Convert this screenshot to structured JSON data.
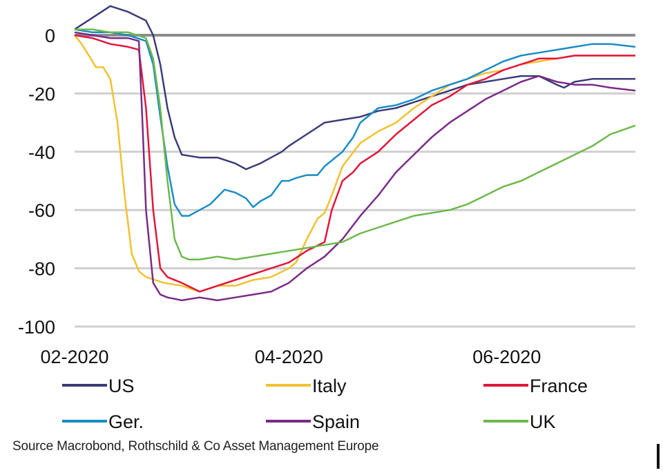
{
  "chart_data": {
    "type": "line",
    "title": "",
    "xlabel": "",
    "ylabel": "",
    "ylim": [
      -100,
      0
    ],
    "yticks": [
      0,
      -20,
      -40,
      -60,
      -80,
      -100
    ],
    "ytick_labels": [
      "0",
      "-20",
      "-40",
      "-60",
      "-80",
      "-100"
    ],
    "xticks": [
      {
        "label": "02-2020",
        "day": 0
      },
      {
        "label": "04-2020",
        "day": 60
      },
      {
        "label": "06-2020",
        "day": 121
      }
    ],
    "x_unit": "days since 2020-02-01",
    "xlim": [
      0,
      157
    ],
    "grid": true,
    "zero_line": true,
    "legend_position": "bottom",
    "series": [
      {
        "name": "US",
        "color": "#3b3b78",
        "x": [
          0,
          5,
          10,
          15,
          20,
          22,
          24,
          26,
          28,
          30,
          35,
          40,
          45,
          48,
          50,
          52,
          55,
          58,
          60,
          65,
          70,
          75,
          80,
          85,
          90,
          95,
          100,
          105,
          110,
          115,
          120,
          125,
          130,
          135,
          137,
          140,
          145,
          150,
          157
        ],
        "y": [
          2,
          6,
          10,
          8,
          5,
          0,
          -10,
          -25,
          -35,
          -41,
          -42,
          -42,
          -44,
          -46,
          -45,
          -44,
          -42,
          -40,
          -38,
          -34,
          -30,
          -29,
          -28,
          -26,
          -25,
          -23,
          -21,
          -19,
          -17,
          -16,
          -15,
          -14,
          -14,
          -17,
          -18,
          -16,
          -15,
          -15,
          -15
        ]
      },
      {
        "name": "Italy",
        "color": "#f2c12e",
        "x": [
          0,
          2,
          4,
          6,
          8,
          10,
          12,
          14,
          16,
          18,
          20,
          25,
          30,
          35,
          40,
          45,
          50,
          55,
          60,
          62,
          65,
          68,
          70,
          72,
          75,
          80,
          85,
          90,
          95,
          100,
          105,
          110,
          115,
          120,
          125,
          130,
          135,
          140,
          145,
          150,
          157
        ],
        "y": [
          0,
          -3,
          -7,
          -11,
          -11,
          -15,
          -30,
          -55,
          -75,
          -81,
          -83,
          -85,
          -86,
          -88,
          -86,
          -86,
          -84,
          -83,
          -80,
          -78,
          -70,
          -63,
          -61,
          -55,
          -45,
          -37,
          -33,
          -30,
          -25,
          -21,
          -17,
          -15,
          -13,
          -12,
          -10,
          -9,
          -8,
          -7,
          -7,
          -7,
          -7
        ]
      },
      {
        "name": "France",
        "color": "#e0163a",
        "x": [
          0,
          5,
          10,
          15,
          18,
          20,
          22,
          24,
          26,
          30,
          35,
          40,
          45,
          50,
          55,
          60,
          65,
          70,
          72,
          75,
          78,
          80,
          85,
          90,
          95,
          100,
          105,
          110,
          115,
          120,
          125,
          130,
          135,
          140,
          145,
          150,
          157
        ],
        "y": [
          0,
          -1,
          -3,
          -4,
          -5,
          -25,
          -60,
          -80,
          -83,
          -85,
          -88,
          -86,
          -84,
          -82,
          -80,
          -78,
          -74,
          -71,
          -60,
          -50,
          -47,
          -44,
          -40,
          -34,
          -29,
          -24,
          -21,
          -17,
          -15,
          -12,
          -10,
          -8,
          -8,
          -7,
          -7,
          -7,
          -7
        ]
      },
      {
        "name": "Ger.",
        "color": "#1a8cc6",
        "x": [
          0,
          5,
          10,
          15,
          20,
          22,
          24,
          26,
          28,
          30,
          32,
          35,
          38,
          42,
          45,
          48,
          50,
          52,
          55,
          58,
          60,
          62,
          65,
          68,
          70,
          75,
          78,
          80,
          85,
          90,
          95,
          100,
          105,
          110,
          115,
          120,
          125,
          130,
          135,
          140,
          145,
          150,
          157
        ],
        "y": [
          2,
          1,
          1,
          0,
          -2,
          -10,
          -28,
          -45,
          -58,
          -62,
          -62,
          -60,
          -58,
          -53,
          -54,
          -56,
          -59,
          -57,
          -55,
          -50,
          -50,
          -49,
          -48,
          -48,
          -45,
          -40,
          -35,
          -30,
          -25,
          -24,
          -22,
          -19,
          -17,
          -15,
          -12,
          -9,
          -7,
          -6,
          -5,
          -4,
          -3,
          -3,
          -4
        ]
      },
      {
        "name": "Spain",
        "color": "#7a2a86",
        "x": [
          0,
          5,
          10,
          15,
          18,
          19,
          20,
          22,
          24,
          26,
          30,
          35,
          40,
          45,
          50,
          55,
          60,
          65,
          70,
          75,
          80,
          85,
          90,
          95,
          100,
          105,
          110,
          115,
          120,
          125,
          130,
          135,
          140,
          145,
          150,
          157
        ],
        "y": [
          1,
          0,
          -1,
          -1,
          -2,
          -30,
          -60,
          -85,
          -89,
          -90,
          -91,
          -90,
          -91,
          -90,
          -89,
          -88,
          -85,
          -80,
          -76,
          -70,
          -62,
          -55,
          -47,
          -41,
          -35,
          -30,
          -26,
          -22,
          -19,
          -16,
          -14,
          -16,
          -17,
          -17,
          -18,
          -19
        ]
      },
      {
        "name": "UK",
        "color": "#6db84a",
        "x": [
          0,
          5,
          10,
          15,
          20,
          22,
          24,
          26,
          28,
          30,
          32,
          35,
          40,
          45,
          50,
          55,
          60,
          65,
          70,
          75,
          80,
          85,
          90,
          95,
          100,
          105,
          110,
          115,
          120,
          125,
          130,
          135,
          140,
          145,
          150,
          157
        ],
        "y": [
          2,
          2,
          1,
          1,
          -1,
          -8,
          -25,
          -50,
          -70,
          -76,
          -77,
          -77,
          -76,
          -77,
          -76,
          -75,
          -74,
          -73,
          -72,
          -71,
          -68,
          -66,
          -64,
          -62,
          -61,
          -60,
          -58,
          -55,
          -52,
          -50,
          -47,
          -44,
          -41,
          -38,
          -34,
          -31
        ]
      }
    ],
    "source": "Source Macrobond, Rothschild & Co Asset Management Europe"
  }
}
